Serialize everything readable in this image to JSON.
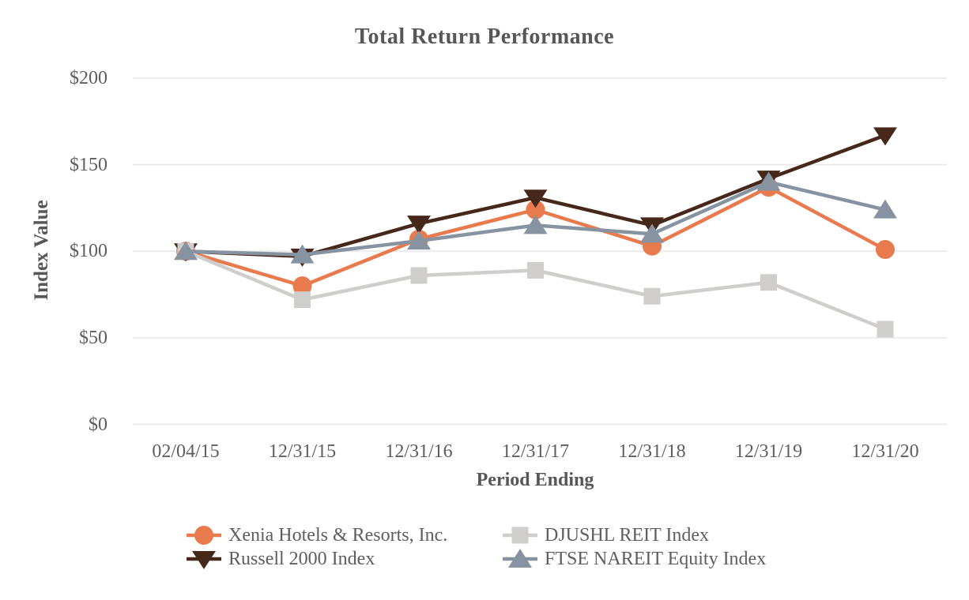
{
  "chart_data": {
    "type": "line",
    "title": "Total Return Performance",
    "xlabel": "Period Ending",
    "ylabel": "Index Value",
    "categories": [
      "02/04/15",
      "12/31/15",
      "12/31/16",
      "12/31/17",
      "12/31/18",
      "12/31/19",
      "12/31/20"
    ],
    "y_ticks": [
      {
        "label": "$0",
        "value": 0
      },
      {
        "label": "$50",
        "value": 50
      },
      {
        "label": "$100",
        "value": 100
      },
      {
        "label": "$150",
        "value": 150
      },
      {
        "label": "$200",
        "value": 200
      }
    ],
    "ylim": [
      0,
      200
    ],
    "grid": "horizontal-only",
    "legend_position": "bottom-two-columns",
    "series": [
      {
        "name": "Xenia Hotels & Resorts, Inc.",
        "marker": "circle",
        "color": "#E97A4D",
        "values": [
          100,
          80,
          107,
          124,
          103,
          137,
          101
        ]
      },
      {
        "name": "Russell 2000 Index",
        "marker": "triangle-down",
        "color": "#46281B",
        "values": [
          100,
          97,
          116,
          131,
          115,
          142,
          167
        ]
      },
      {
        "name": "DJUSHL REIT Index",
        "marker": "square",
        "color": "#CFCECC",
        "values": [
          100,
          72,
          86,
          89,
          74,
          82,
          55
        ]
      },
      {
        "name": "FTSE NAREIT Equity Index",
        "marker": "triangle-up",
        "color": "#8793A0",
        "values": [
          100,
          98,
          106,
          115,
          110,
          140,
          124
        ]
      }
    ],
    "colors": {
      "text": "#5E5E5E",
      "title_text": "#575757",
      "gridline": "#EBEBEB",
      "background": "#FFFFFF"
    }
  }
}
